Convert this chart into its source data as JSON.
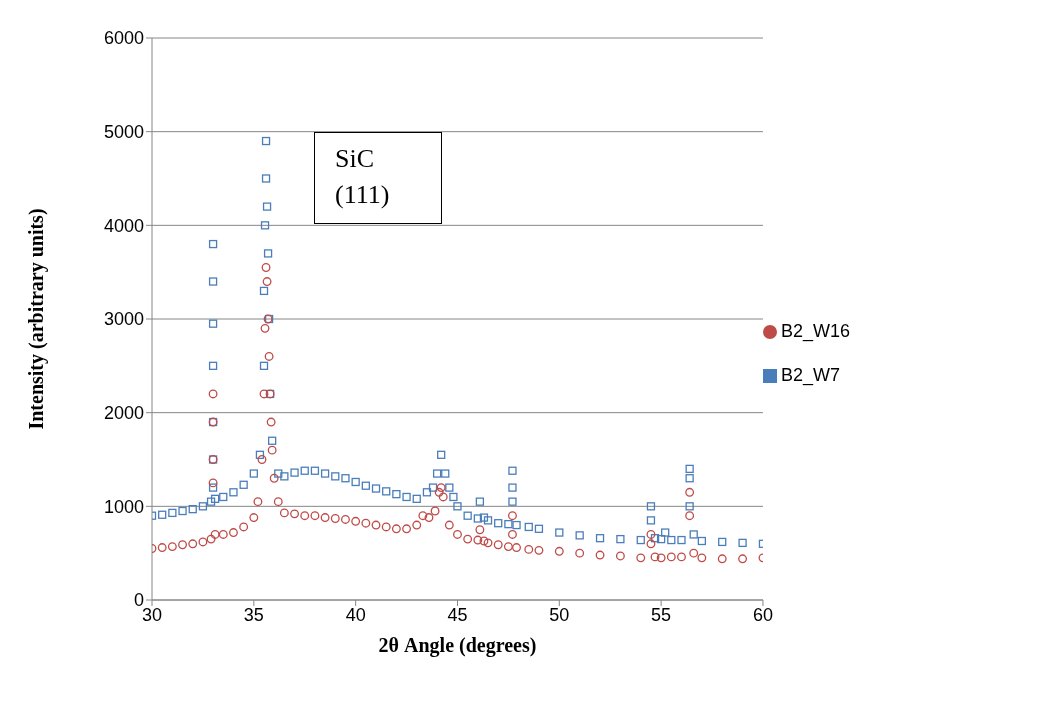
{
  "chart_data": {
    "type": "scatter",
    "xlabel": "2θ Angle (degrees)",
    "ylabel": "Intensity (arbitrary units)",
    "xlim": [
      30,
      60
    ],
    "xticks": [
      30,
      35,
      40,
      45,
      50,
      55,
      60
    ],
    "ylim": [
      0,
      6000
    ],
    "yticks": [
      0,
      1000,
      2000,
      3000,
      4000,
      5000,
      6000
    ],
    "grid": "y",
    "legend": "right",
    "annotations": [
      "SiC (111)"
    ],
    "series": [
      {
        "name": "B2_W7",
        "color": "#4a7ebb",
        "marker": "square",
        "x": [
          30,
          30.5,
          31,
          31.5,
          32,
          32.5,
          32.9,
          33.0,
          33.0,
          33.0,
          33.0,
          33.0,
          33.0,
          33.0,
          33.1,
          33.5,
          34,
          34.5,
          35,
          35.3,
          35.5,
          35.5,
          35.55,
          35.6,
          35.6,
          35.65,
          35.7,
          35.75,
          35.8,
          35.9,
          36.2,
          36.5,
          37,
          37.5,
          38,
          38.5,
          39,
          39.5,
          40,
          40.5,
          41,
          41.5,
          42,
          42.5,
          43,
          43.5,
          43.8,
          44.0,
          44.2,
          44.4,
          44.6,
          44.8,
          45,
          45.5,
          46,
          46.1,
          46.3,
          46.5,
          47,
          47.5,
          47.7,
          47.7,
          47.7,
          47.9,
          48.5,
          49,
          50,
          51,
          52,
          53,
          54,
          54.5,
          54.5,
          54.7,
          55,
          55.2,
          55.5,
          56,
          56.4,
          56.4,
          56.4,
          56.6,
          57,
          58,
          59,
          60
        ],
        "values": [
          900,
          910,
          930,
          950,
          970,
          1000,
          1050,
          1500,
          1900,
          2500,
          2950,
          3400,
          3800,
          1200,
          1080,
          1100,
          1150,
          1230,
          1350,
          1550,
          2500,
          3300,
          4000,
          4500,
          4900,
          4200,
          3700,
          3000,
          2200,
          1700,
          1350,
          1320,
          1360,
          1380,
          1380,
          1350,
          1320,
          1300,
          1260,
          1220,
          1190,
          1160,
          1130,
          1100,
          1080,
          1150,
          1200,
          1350,
          1550,
          1350,
          1200,
          1100,
          1000,
          900,
          870,
          1050,
          880,
          850,
          820,
          810,
          1380,
          1200,
          1050,
          800,
          780,
          760,
          720,
          690,
          660,
          650,
          640,
          1000,
          850,
          660,
          650,
          720,
          640,
          640,
          1400,
          1300,
          1000,
          700,
          630,
          620,
          610,
          600
        ]
      },
      {
        "name": "B2_W16",
        "color": "#be4b48",
        "marker": "circle",
        "x": [
          30,
          30.5,
          31,
          31.5,
          32,
          32.5,
          32.9,
          33.0,
          33.0,
          33.0,
          33.0,
          33.1,
          33.5,
          34,
          34.5,
          35,
          35.2,
          35.4,
          35.5,
          35.55,
          35.6,
          35.65,
          35.7,
          35.75,
          35.8,
          35.85,
          35.9,
          36.0,
          36.2,
          36.5,
          37,
          37.5,
          38,
          38.5,
          39,
          39.5,
          40,
          40.5,
          41,
          41.5,
          42,
          42.5,
          43,
          43.3,
          43.6,
          43.9,
          44.1,
          44.2,
          44.3,
          44.6,
          45,
          45.5,
          46,
          46.1,
          46.3,
          46.5,
          47,
          47.5,
          47.7,
          47.7,
          47.9,
          48.5,
          49,
          50,
          51,
          52,
          53,
          54,
          54.5,
          54.5,
          54.7,
          55,
          55.5,
          56,
          56.4,
          56.4,
          56.6,
          57,
          58,
          59,
          60
        ],
        "values": [
          550,
          560,
          570,
          590,
          600,
          620,
          650,
          1250,
          1500,
          1900,
          2200,
          700,
          700,
          720,
          780,
          880,
          1050,
          1500,
          2200,
          2900,
          3550,
          3400,
          3000,
          2600,
          2200,
          1900,
          1600,
          1300,
          1050,
          930,
          920,
          900,
          900,
          880,
          870,
          860,
          840,
          820,
          800,
          780,
          760,
          760,
          800,
          900,
          880,
          950,
          1150,
          1200,
          1100,
          800,
          700,
          650,
          640,
          750,
          630,
          610,
          590,
          570,
          900,
          700,
          560,
          540,
          530,
          520,
          500,
          480,
          470,
          450,
          700,
          600,
          460,
          450,
          460,
          460,
          1150,
          900,
          500,
          450,
          440,
          440,
          450
        ]
      }
    ]
  }
}
